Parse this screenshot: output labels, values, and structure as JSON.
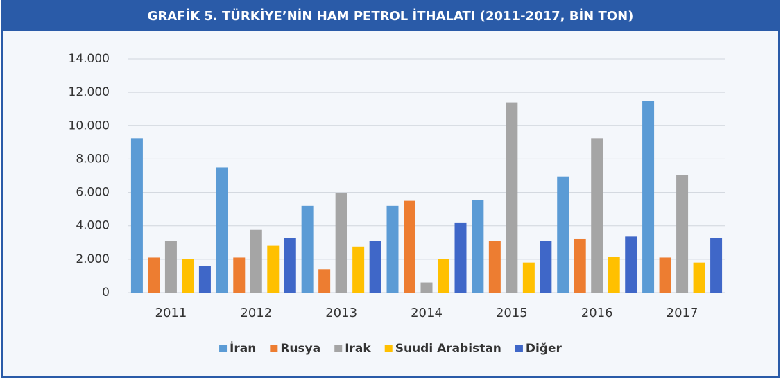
{
  "chart_data": {
    "type": "bar",
    "title": "GRAFİK 5. TÜRKİYE’NİN HAM PETROL İTHALATI (2011-2017, BİN TON)",
    "categories": [
      "2011",
      "2012",
      "2013",
      "2014",
      "2015",
      "2016",
      "2017"
    ],
    "series": [
      {
        "name": "İran",
        "color": "#5b9bd5",
        "values": [
          9250,
          7500,
          5200,
          5200,
          5550,
          6950,
          11500
        ]
      },
      {
        "name": "Rusya",
        "color": "#ed7d31",
        "values": [
          2100,
          2100,
          1400,
          5500,
          3100,
          3200,
          2100
        ]
      },
      {
        "name": "Irak",
        "color": "#a5a5a5",
        "values": [
          3100,
          3750,
          5950,
          600,
          11400,
          9250,
          7050
        ]
      },
      {
        "name": "Suudi Arabistan",
        "color": "#ffc000",
        "values": [
          2000,
          2800,
          2750,
          2000,
          1800,
          2150,
          1800
        ]
      },
      {
        "name": "Diğer",
        "color": "#3f67c8",
        "values": [
          1600,
          3250,
          3100,
          4200,
          3100,
          3350,
          3250
        ]
      }
    ],
    "ylim": [
      0,
      14000
    ],
    "yticks": [
      0,
      {
        "value": 2000,
        "label": "2.000"
      },
      {
        "value": 4000,
        "label": "4.000"
      },
      {
        "value": 6000,
        "label": "6.000"
      },
      {
        "value": 8000,
        "label": "8.000"
      },
      {
        "value": 10000,
        "label": "10.000"
      },
      {
        "value": 12000,
        "label": "12.000"
      },
      {
        "value": 14000,
        "label": "14.000"
      }
    ],
    "grid": true,
    "legend": "bottom"
  }
}
